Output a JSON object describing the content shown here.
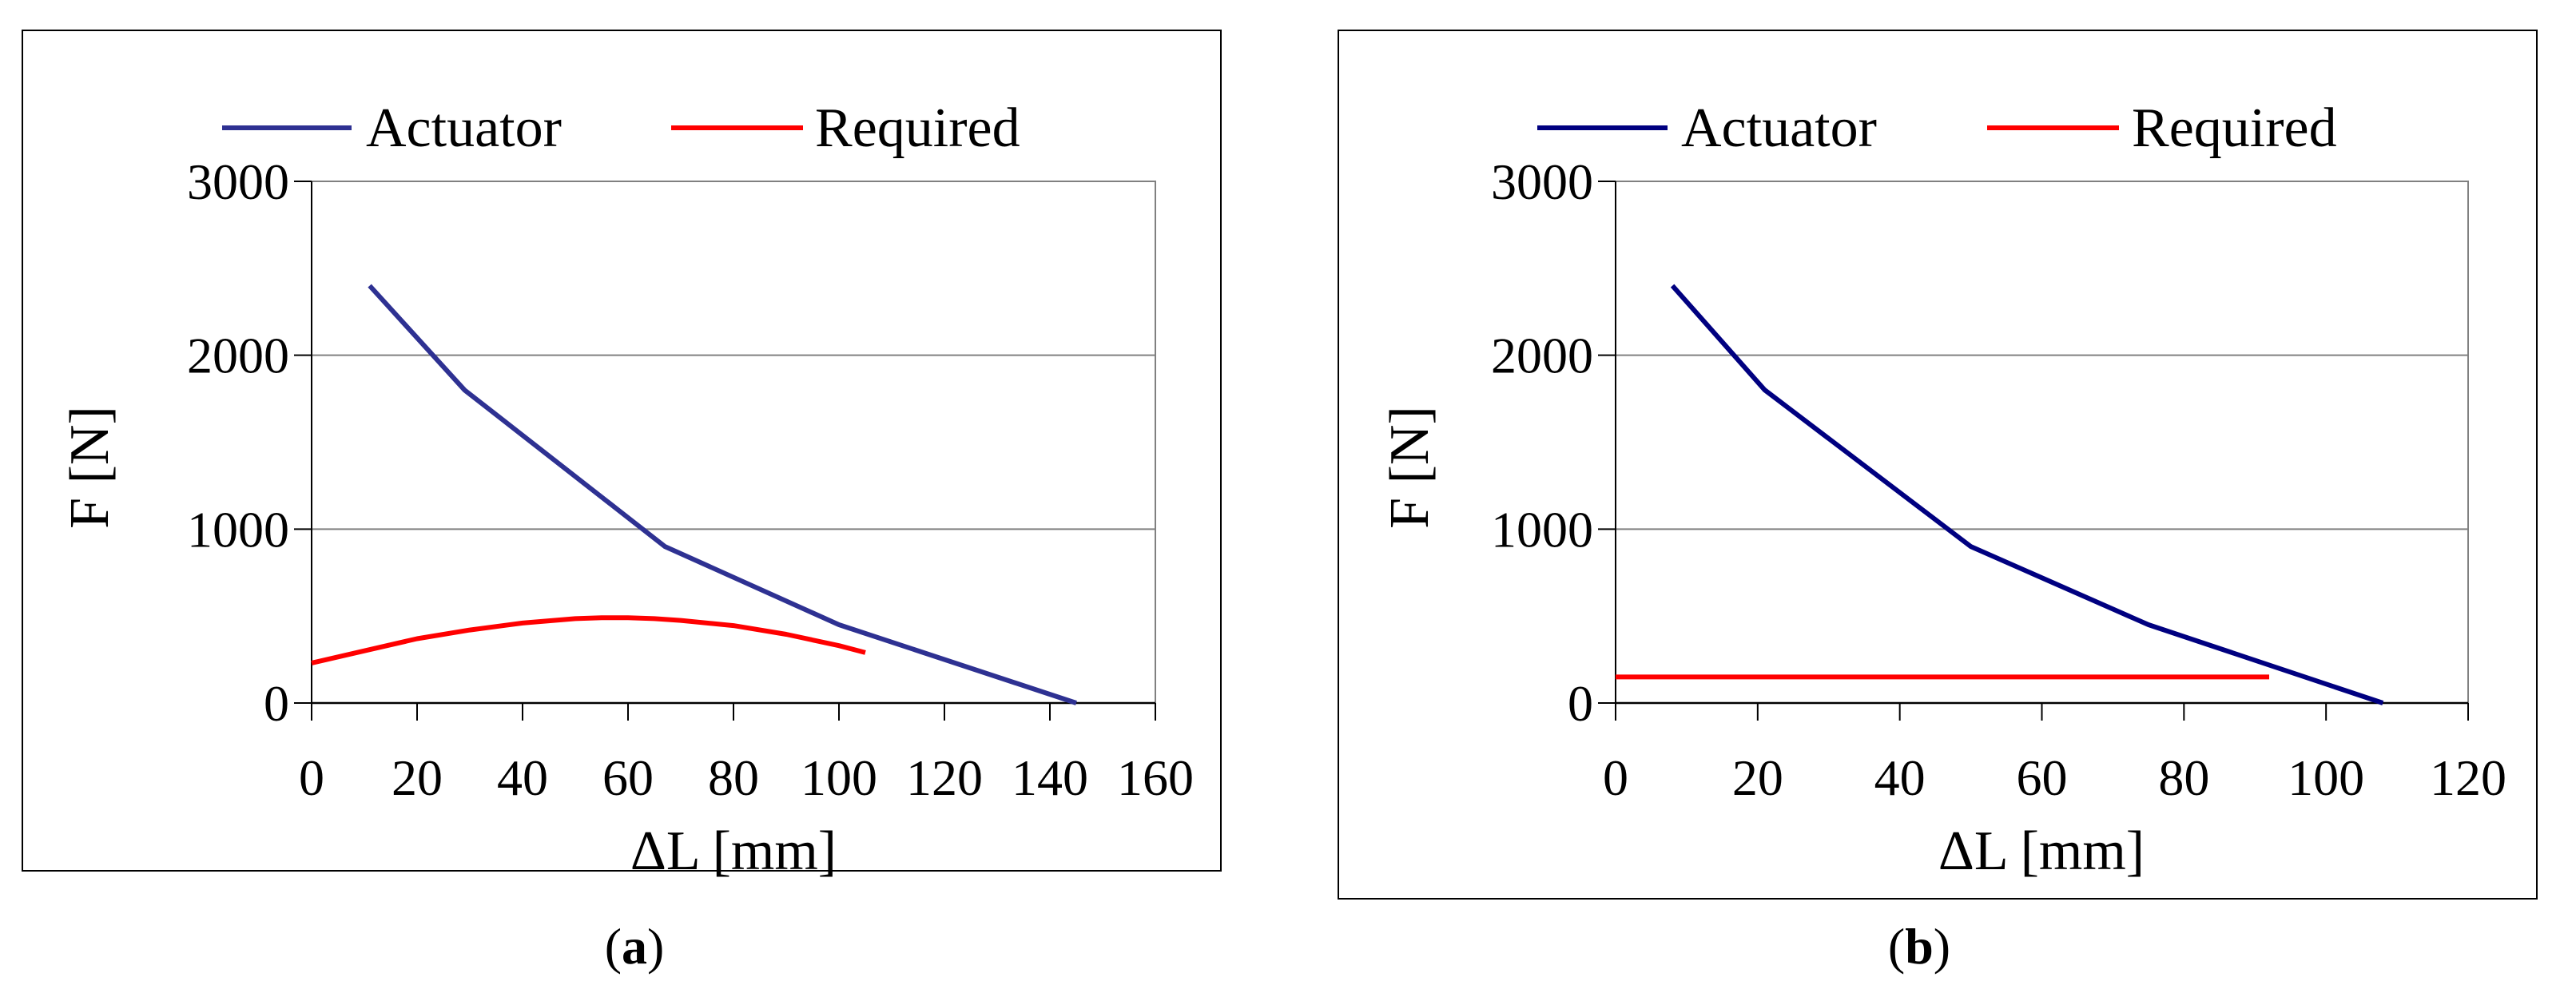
{
  "chart_data": [
    {
      "id": "a",
      "type": "line",
      "xlabel": "ΔL [mm]",
      "ylabel": "F [N]",
      "xlim": [
        0,
        160
      ],
      "ylim": [
        0,
        3000
      ],
      "xticks": [
        0,
        20,
        40,
        60,
        80,
        100,
        120,
        140,
        160
      ],
      "yticks": [
        0,
        1000,
        2000,
        3000
      ],
      "grid": "horizontal",
      "legend_position": "top",
      "series": [
        {
          "name": "Actuator",
          "color": "#2e3192",
          "x": [
            11,
            29,
            48,
            67,
            100,
            145
          ],
          "y": [
            2400,
            1800,
            1350,
            900,
            450,
            0
          ]
        },
        {
          "name": "Required",
          "color": "#ff0000",
          "x": [
            0,
            10,
            20,
            30,
            40,
            50,
            55,
            60,
            65,
            70,
            80,
            90,
            100,
            105
          ],
          "y": [
            230,
            300,
            370,
            420,
            460,
            485,
            490,
            490,
            485,
            475,
            445,
            395,
            330,
            290
          ]
        }
      ]
    },
    {
      "id": "b",
      "type": "line",
      "xlabel": "ΔL [mm]",
      "ylabel": "F [N]",
      "xlim": [
        0,
        120
      ],
      "ylim": [
        0,
        3000
      ],
      "xticks": [
        0,
        20,
        40,
        60,
        80,
        100,
        120
      ],
      "yticks": [
        0,
        1000,
        2000,
        3000
      ],
      "grid": "horizontal",
      "legend_position": "top",
      "series": [
        {
          "name": "Actuator",
          "color": "#000080",
          "x": [
            8,
            21,
            50,
            75,
            108
          ],
          "y": [
            2400,
            1800,
            900,
            450,
            0
          ]
        },
        {
          "name": "Required",
          "color": "#ff0000",
          "x": [
            0,
            92
          ],
          "y": [
            150,
            150
          ]
        }
      ]
    }
  ],
  "captions": [
    {
      "open": "(",
      "letter": "a",
      "close": ")"
    },
    {
      "open": "(",
      "letter": "b",
      "close": ")"
    }
  ]
}
